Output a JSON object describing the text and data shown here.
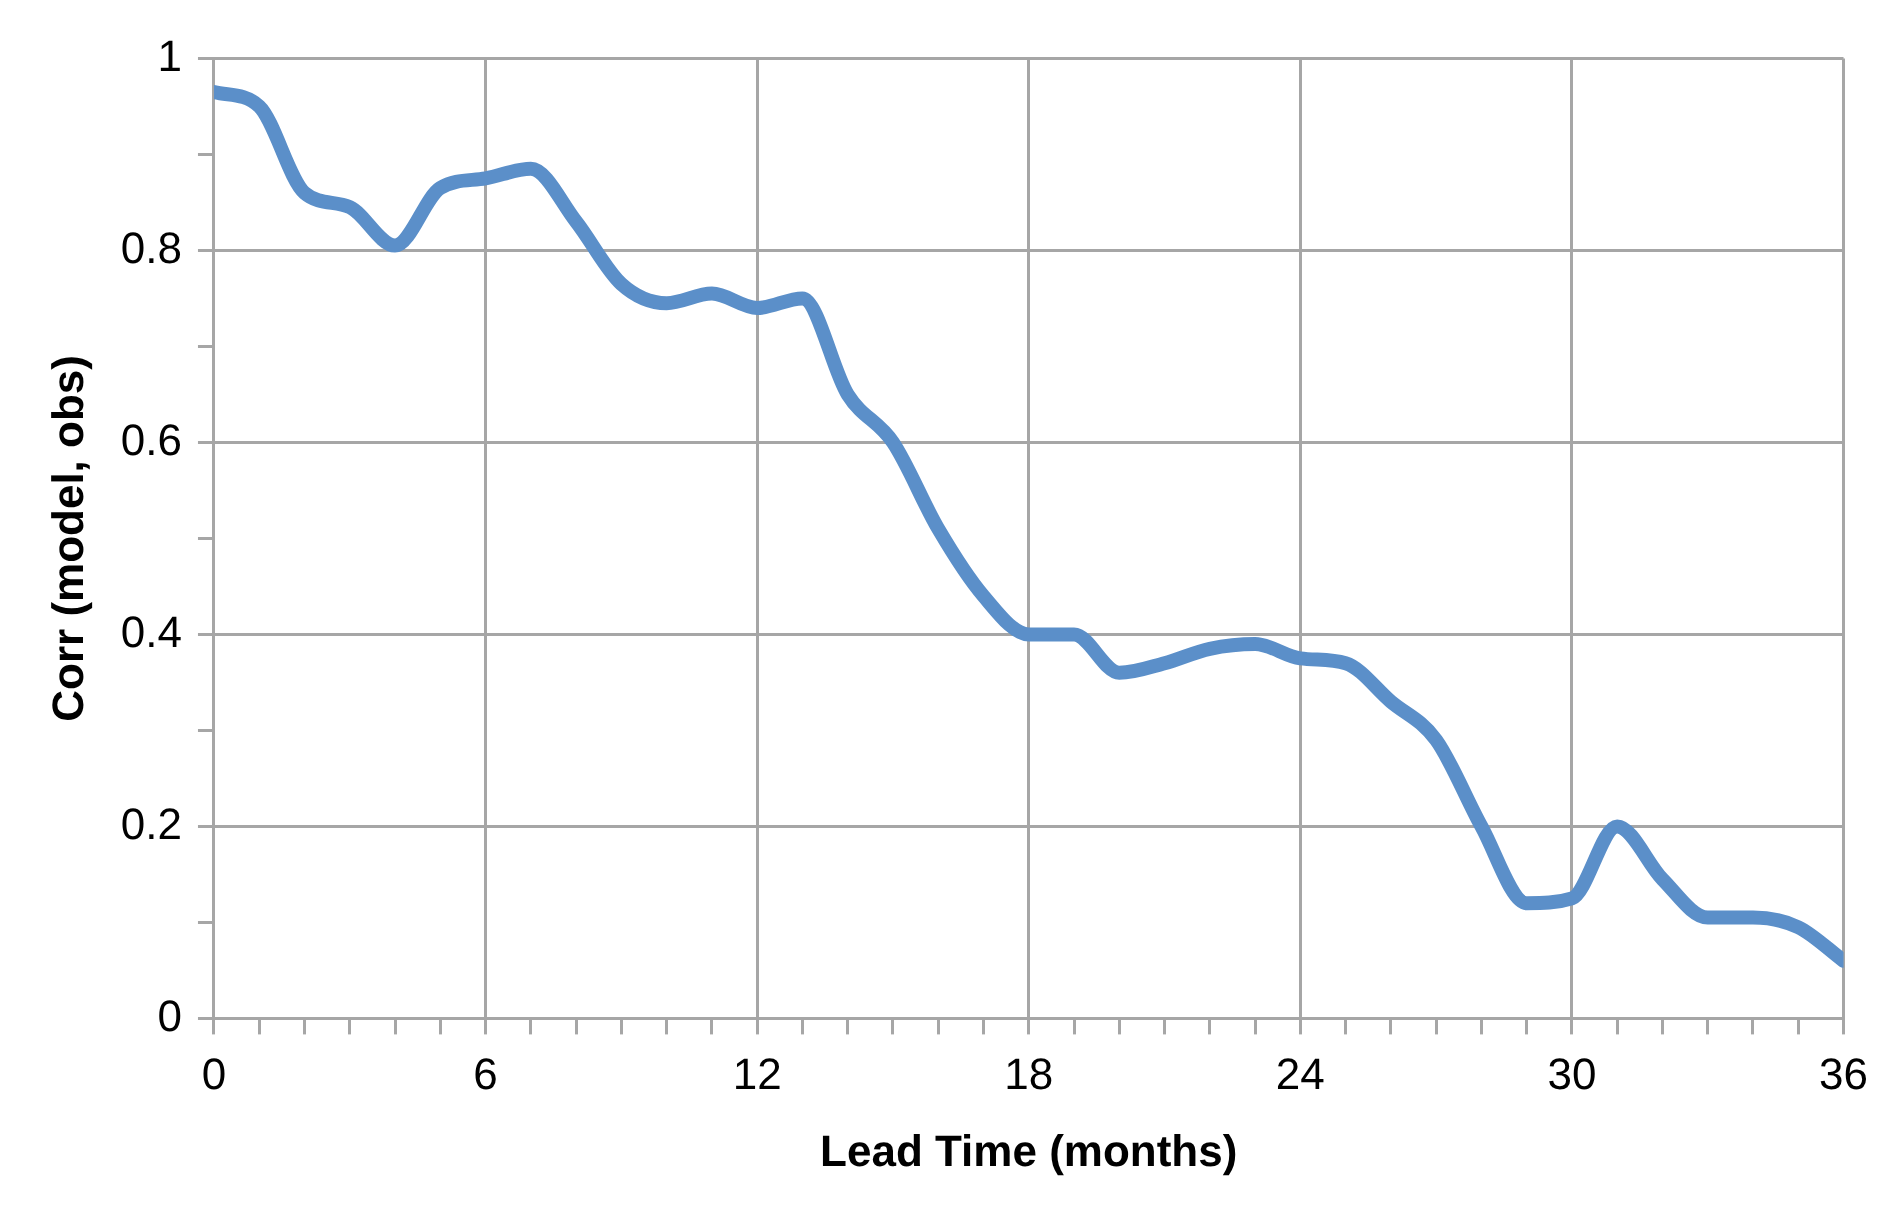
{
  "chart_data": {
    "type": "line",
    "xlabel": "Lead Time (months)",
    "ylabel": "Corr (model, obs)",
    "x": [
      0,
      1,
      2,
      3,
      4,
      5,
      6,
      7,
      8,
      9,
      10,
      11,
      12,
      13,
      14,
      15,
      16,
      17,
      18,
      19,
      20,
      21,
      22,
      23,
      24,
      25,
      26,
      27,
      28,
      29,
      30,
      31,
      32,
      33,
      34,
      35,
      36
    ],
    "series": [
      {
        "color": "#5b8fc9",
        "values": [
          0.965,
          0.95,
          0.86,
          0.845,
          0.805,
          0.865,
          0.875,
          0.885,
          0.83,
          0.765,
          0.745,
          0.755,
          0.74,
          0.75,
          0.65,
          0.6,
          0.51,
          0.44,
          0.4,
          0.4,
          0.36,
          0.37,
          0.385,
          0.39,
          0.375,
          0.37,
          0.33,
          0.29,
          0.2,
          0.12,
          0.125,
          0.2,
          0.145,
          0.105,
          0.105,
          0.095,
          0.06
        ]
      }
    ],
    "xlim": [
      0,
      36
    ],
    "xticks": [
      0,
      {
        "value": 1,
        "label": null
      },
      {
        "value": 2,
        "label": null
      },
      {
        "value": 3,
        "label": null
      },
      {
        "value": 4,
        "label": null
      },
      {
        "value": 5,
        "label": null
      },
      6,
      {
        "value": 7,
        "label": null
      },
      {
        "value": 8,
        "label": null
      },
      {
        "value": 9,
        "label": null
      },
      {
        "value": 10,
        "label": null
      },
      {
        "value": 11,
        "label": null
      },
      12,
      {
        "value": 13,
        "label": null
      },
      {
        "value": 14,
        "label": null
      },
      {
        "value": 15,
        "label": null
      },
      {
        "value": 16,
        "label": null
      },
      {
        "value": 17,
        "label": null
      },
      18,
      {
        "value": 19,
        "label": null
      },
      {
        "value": 20,
        "label": null
      },
      {
        "value": 21,
        "label": null
      },
      {
        "value": 22,
        "label": null
      },
      {
        "value": 23,
        "label": null
      },
      24,
      {
        "value": 25,
        "label": null
      },
      {
        "value": 26,
        "label": null
      },
      {
        "value": 27,
        "label": null
      },
      {
        "value": 28,
        "label": null
      },
      {
        "value": 29,
        "label": null
      },
      30,
      {
        "value": 31,
        "label": null
      },
      {
        "value": 32,
        "label": null
      },
      {
        "value": 33,
        "label": null
      },
      {
        "value": 34,
        "label": null
      },
      {
        "value": 35,
        "label": null
      },
      36
    ],
    "ylim": [
      0,
      1
    ],
    "yticks": [
      0,
      {
        "value": 0.1,
        "label": null
      },
      0.2,
      {
        "value": 0.3,
        "label": null
      },
      0.4,
      {
        "value": 0.5,
        "label": null
      },
      0.6,
      {
        "value": 0.7,
        "label": null
      },
      0.8,
      {
        "value": 0.9,
        "label": null
      },
      1
    ],
    "grid": true,
    "marker": "none",
    "line_style": "solid"
  }
}
